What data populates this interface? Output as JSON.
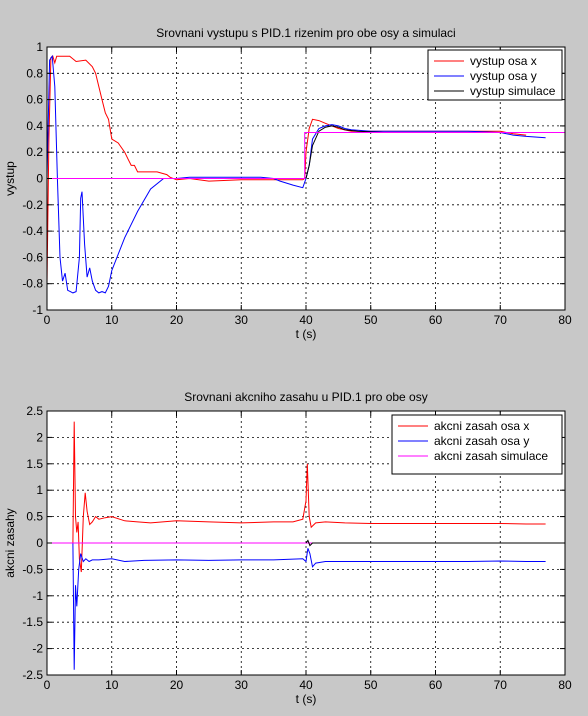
{
  "chart_data": [
    {
      "type": "line",
      "title": "Srovnani vystupu s PID.1 rizenim pro obe osy a simulaci",
      "xlabel": "t (s)",
      "ylabel": "vystup",
      "xlim": [
        0,
        80
      ],
      "ylim": [
        -1,
        1
      ],
      "xticks": [
        "0",
        "10",
        "20",
        "30",
        "40",
        "50",
        "60",
        "70",
        "80"
      ],
      "yticks": [
        "-1",
        "-0.8",
        "-0.6",
        "-0.4",
        "-0.2",
        "0",
        "0.2",
        "0.4",
        "0.6",
        "0.8",
        "1"
      ],
      "grid": true,
      "legend": "top-right",
      "series": [
        {
          "name": "vystup osa x",
          "color": "#ff0000",
          "x": [
            0,
            0.3,
            0.6,
            0.9,
            1.2,
            1.5,
            2.0,
            3.5,
            4.5,
            6.0,
            7.0,
            7.5,
            8.0,
            8.5,
            9.0,
            9.5,
            10.0,
            11.0,
            12.0,
            12.5,
            13.0,
            13.5,
            14.0,
            15.0,
            17.0,
            18.5,
            19.0,
            20.0,
            22.0,
            25.0,
            30.0,
            35.0,
            38.0,
            39.5,
            39.8,
            40.0,
            40.5,
            41.0,
            42.0,
            43.0,
            45.0,
            47.0,
            50.0,
            55.0,
            60.0,
            65.0,
            70.0,
            72.0,
            74.0
          ],
          "values": [
            -0.8,
            0.3,
            0.92,
            0.93,
            0.88,
            0.93,
            0.93,
            0.93,
            0.89,
            0.9,
            0.85,
            0.8,
            0.7,
            0.6,
            0.5,
            0.45,
            0.3,
            0.27,
            0.2,
            0.15,
            0.1,
            0.1,
            0.05,
            0.05,
            0.05,
            0.03,
            0.01,
            -0.01,
            0.0,
            -0.02,
            -0.01,
            -0.01,
            -0.01,
            -0.01,
            0.0,
            0.2,
            0.38,
            0.45,
            0.44,
            0.42,
            0.38,
            0.36,
            0.36,
            0.36,
            0.36,
            0.36,
            0.36,
            0.34,
            0.33
          ]
        },
        {
          "name": "vystup osa y",
          "color": "#0000ff",
          "x": [
            0,
            0.4,
            0.8,
            1.2,
            1.6,
            2.0,
            2.4,
            2.8,
            3.2,
            3.6,
            4.0,
            4.5,
            5.0,
            5.2,
            5.4,
            5.8,
            6.2,
            6.6,
            7.0,
            7.5,
            8.0,
            8.5,
            9.0,
            9.5,
            10.0,
            12.0,
            14.0,
            16.0,
            18.0,
            20.0,
            22.0,
            25.0,
            30.0,
            33.0,
            35.0,
            36.0,
            38.0,
            39.5,
            40.0,
            40.5,
            41.0,
            42.0,
            43.0,
            44.0,
            45.0,
            46.0,
            47.0,
            50.0,
            55.0,
            60.0,
            65.0,
            70.0,
            72.0,
            74.0,
            77.0
          ],
          "values": [
            0.0,
            0.9,
            0.93,
            0.7,
            0.0,
            -0.6,
            -0.78,
            -0.72,
            -0.85,
            -0.86,
            -0.87,
            -0.86,
            -0.6,
            -0.15,
            -0.1,
            -0.5,
            -0.75,
            -0.68,
            -0.78,
            -0.85,
            -0.87,
            -0.86,
            -0.87,
            -0.82,
            -0.7,
            -0.45,
            -0.25,
            -0.08,
            0.0,
            0.0,
            0.01,
            0.01,
            0.01,
            0.01,
            0.0,
            -0.02,
            -0.05,
            -0.07,
            0.0,
            0.1,
            0.3,
            0.38,
            0.4,
            0.41,
            0.4,
            0.38,
            0.37,
            0.36,
            0.36,
            0.36,
            0.36,
            0.35,
            0.33,
            0.32,
            0.31
          ]
        },
        {
          "name": "vystup simulace",
          "color": "#000000",
          "x": [
            40.0,
            40.5,
            41.0,
            42.0,
            43.0,
            44.0,
            45.0,
            46.0,
            48.0,
            52.0
          ],
          "values": [
            0.0,
            0.1,
            0.25,
            0.36,
            0.39,
            0.4,
            0.39,
            0.37,
            0.36,
            0.35
          ]
        },
        {
          "name": "",
          "color": "#ff00ff",
          "x": [
            0,
            39.8,
            39.8,
            80
          ],
          "values": [
            0.0,
            0.0,
            0.35,
            0.35
          ]
        }
      ]
    },
    {
      "type": "line",
      "title": "Srovnani akcniho zasahu u PID.1 pro obe osy",
      "xlabel": "t (s)",
      "ylabel": "akcni zasahy",
      "xlim": [
        0,
        80
      ],
      "ylim": [
        -2.5,
        2.5
      ],
      "xticks": [
        "0",
        "10",
        "20",
        "30",
        "40",
        "50",
        "60",
        "70",
        "80"
      ],
      "yticks": [
        "-2.5",
        "-2",
        "-1.5",
        "-1",
        "-0.5",
        "0",
        "0.5",
        "1",
        "1.5",
        "2",
        "2.5"
      ],
      "grid": true,
      "legend": "top-right",
      "series": [
        {
          "name": "akcni zasah osa x",
          "color": "#ff0000",
          "x": [
            4.0,
            4.2,
            4.4,
            4.6,
            4.8,
            5.0,
            5.3,
            5.6,
            5.9,
            6.2,
            6.6,
            7.0,
            7.5,
            8.0,
            9.0,
            10.0,
            12.0,
            14.0,
            16.0,
            20.0,
            25.0,
            30.0,
            35.0,
            38.0,
            39.5,
            40.0,
            40.2,
            40.5,
            40.8,
            41.5,
            43.0,
            46.0,
            50.0,
            55.0,
            60.0,
            65.0,
            70.0,
            74.0,
            77.0
          ],
          "values": [
            0.0,
            2.3,
            0.5,
            0.2,
            0.4,
            -0.3,
            -0.55,
            0.5,
            0.95,
            0.6,
            0.35,
            0.4,
            0.5,
            0.45,
            0.48,
            0.5,
            0.42,
            0.4,
            0.38,
            0.42,
            0.4,
            0.38,
            0.4,
            0.4,
            0.45,
            0.8,
            1.5,
            0.5,
            0.3,
            0.38,
            0.4,
            0.38,
            0.37,
            0.37,
            0.37,
            0.37,
            0.37,
            0.36,
            0.36
          ]
        },
        {
          "name": "akcni zasah osa y",
          "color": "#0000ff",
          "x": [
            4.0,
            4.2,
            4.4,
            4.6,
            4.9,
            5.2,
            5.6,
            6.0,
            6.5,
            7.0,
            8.0,
            10.0,
            12.0,
            15.0,
            20.0,
            25.0,
            30.0,
            35.0,
            39.5,
            40.0,
            40.3,
            40.6,
            41.0,
            41.5,
            43.0,
            46.0,
            50.0,
            55.0,
            60.0,
            65.0,
            70.0,
            74.0,
            77.0
          ],
          "values": [
            0.0,
            -2.4,
            -0.8,
            -1.2,
            -0.5,
            -0.2,
            -0.35,
            -0.3,
            -0.35,
            -0.32,
            -0.32,
            -0.3,
            -0.35,
            -0.33,
            -0.32,
            -0.33,
            -0.32,
            -0.32,
            -0.3,
            -0.35,
            -0.1,
            -0.2,
            -0.45,
            -0.38,
            -0.35,
            -0.35,
            -0.35,
            -0.35,
            -0.35,
            -0.35,
            -0.34,
            -0.35,
            -0.35
          ]
        },
        {
          "name": "akcni zasah simulace",
          "color": "#ff00ff",
          "x": [
            0,
            80
          ],
          "values": [
            0.0,
            0.0
          ]
        },
        {
          "name": "",
          "color": "#000000",
          "x": [
            40.0,
            40.3,
            40.6,
            41.0,
            42.0,
            80.0
          ],
          "values": [
            0.0,
            0.05,
            -0.05,
            0.0,
            0.0,
            0.0
          ]
        }
      ]
    }
  ]
}
